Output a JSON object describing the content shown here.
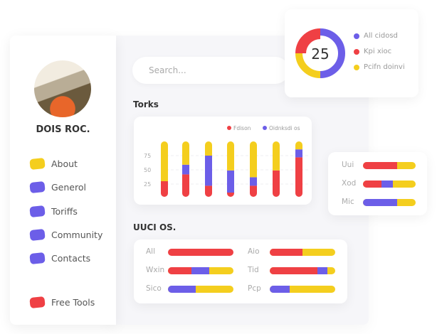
{
  "colors": {
    "red": "#ef4044",
    "blue": "#6c5ee8",
    "yellow": "#f4ce1e"
  },
  "profile": {
    "name": "DOIS ROC."
  },
  "nav": [
    {
      "label": "About",
      "color": "#f4ce1e"
    },
    {
      "label": "Generol",
      "color": "#6c5ee8"
    },
    {
      "label": "Toriffs",
      "color": "#6c5ee8"
    },
    {
      "label": "Community",
      "color": "#6c5ee8"
    },
    {
      "label": "Contacts",
      "color": "#6c5ee8"
    },
    {
      "label": "Free Tools",
      "color": "#ef4044"
    }
  ],
  "search": {
    "placeholder": "Search..."
  },
  "donut": {
    "value": "25",
    "segments": [
      {
        "label": "All cidosd",
        "percent": 50,
        "color": "#6c5ee8"
      },
      {
        "label": "Kpi xioc",
        "percent": 25,
        "color": "#ef4044"
      },
      {
        "label": "Pcifn doinvi",
        "percent": 25,
        "color": "#f4ce1e"
      }
    ]
  },
  "torks": {
    "title": "Torks"
  },
  "chart_data": {
    "type": "bar",
    "stacked": true,
    "legend": [
      {
        "name": "Fdison",
        "color": "#ef4044"
      },
      {
        "name": "Oidnksdi os",
        "color": "#6c5ee8"
      }
    ],
    "legend_position": "top-right",
    "yticks": [
      "75",
      "50",
      "25"
    ],
    "ylim": [
      0,
      100
    ],
    "grid": true,
    "base": 10,
    "bars": [
      {
        "red": 20,
        "blue": 0,
        "yellow": 70
      },
      {
        "red": 32,
        "blue": 17,
        "yellow": 41
      },
      {
        "red": 12,
        "blue": 53,
        "yellow": 25
      },
      {
        "red": 0,
        "blue": 39,
        "yellow": 51
      },
      {
        "red": 12,
        "blue": 15,
        "yellow": 63
      },
      {
        "red": 39,
        "blue": 0,
        "yellow": 51
      },
      {
        "red": 62,
        "blue": 14,
        "yellow": 14
      }
    ]
  },
  "side_bars": [
    {
      "label": "Uui",
      "red": 65,
      "blue": 0
    },
    {
      "label": "Xod",
      "red": 35,
      "blue": 22
    },
    {
      "label": "Mic",
      "red": 0,
      "blue": 65
    }
  ],
  "uuci": {
    "title": "UUCI OS.",
    "rows": [
      {
        "label": "All",
        "red": 100,
        "blue": 0
      },
      {
        "label": "Aio",
        "red": 50,
        "blue": 0
      },
      {
        "label": "Wxin",
        "red": 36,
        "blue": 27
      },
      {
        "label": "Tid",
        "red": 73,
        "blue": 15
      },
      {
        "label": "Sico",
        "red": 0,
        "blue": 42
      },
      {
        "label": "Pcp",
        "red": 0,
        "blue": 30
      }
    ]
  }
}
